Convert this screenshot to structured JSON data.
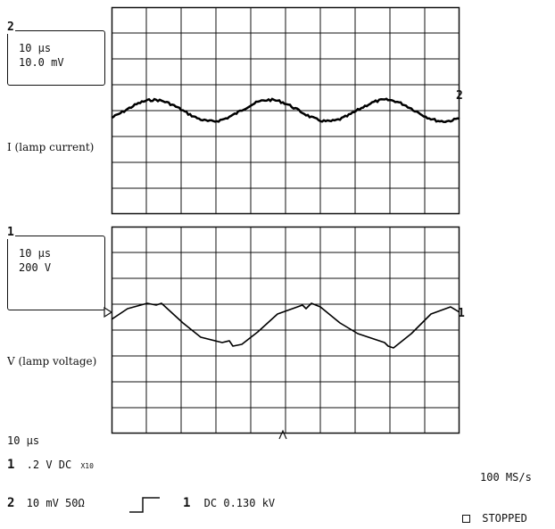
{
  "channel2": {
    "number": "2",
    "timebase": "10 µs",
    "scale": "10.0 mV",
    "trace_label": "I (lamp current)",
    "marker": "2"
  },
  "channel1": {
    "number": "1",
    "timebase": "10 µs",
    "scale": "200 V",
    "trace_label": "V (lamp voltage)",
    "marker": "1"
  },
  "footer": {
    "timebase": "10 µs",
    "ch1_num": "1",
    "ch1_settings": ".2  V  DC",
    "ch1_probe": "X10",
    "ch2_num": "2",
    "ch2_settings": "10 mV  50Ω",
    "trigger_source": "1",
    "trigger_settings": "DC 0.130 kV",
    "sample_rate": "100 MS/s",
    "status": "STOPPED"
  },
  "icons": {
    "trigger_slope": "rising-edge-icon",
    "status_box": "square-icon",
    "trigger_pointer": "caret-up-icon",
    "ground_ref": "triangle-marker-icon"
  }
}
